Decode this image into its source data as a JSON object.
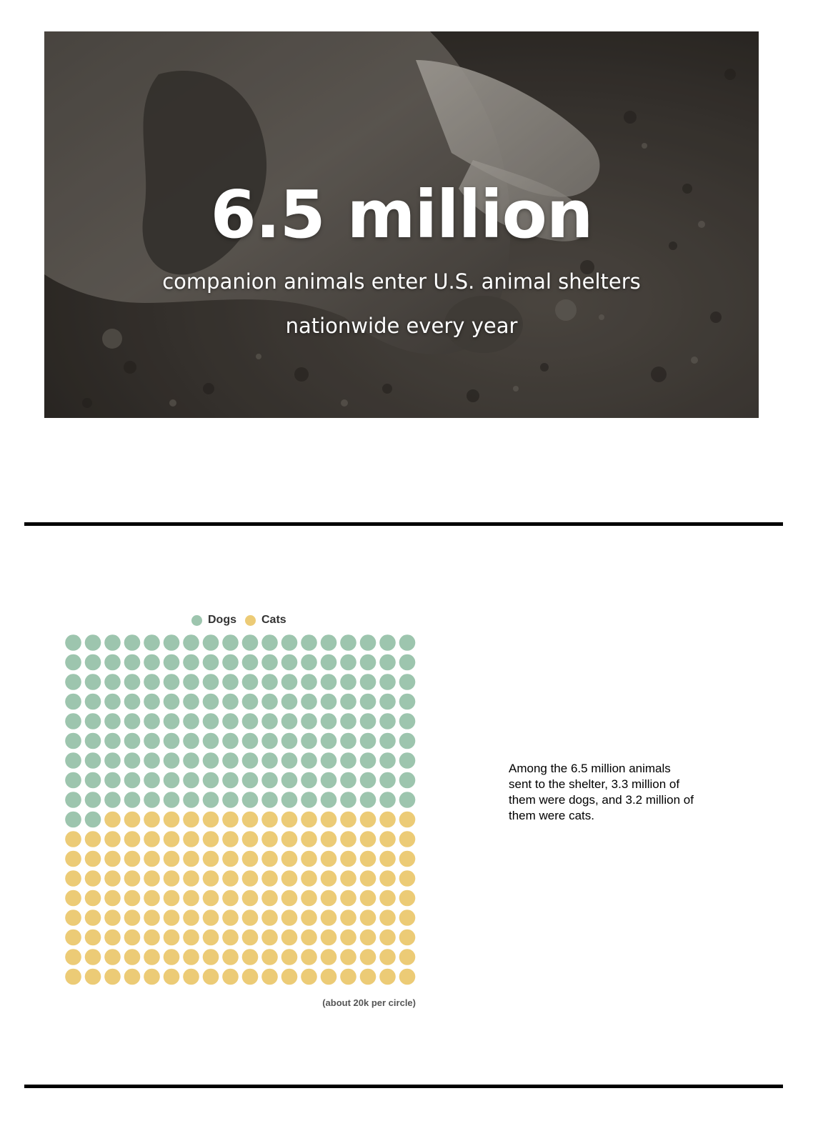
{
  "hero": {
    "headline": "6.5 million",
    "subtitle_line1": "companion animals enter U.S. animal shelters",
    "subtitle_line2": "nationwide every year"
  },
  "chart_data": {
    "type": "waffle",
    "legend": [
      {
        "name": "Dogs",
        "color": "#9dc5ae"
      },
      {
        "name": "Cats",
        "color": "#eccb76"
      }
    ],
    "series": [
      {
        "name": "Dogs",
        "values": [
          164
        ]
      },
      {
        "name": "Cats",
        "values": [
          160
        ]
      }
    ],
    "grid": {
      "rows": 18,
      "columns": 18
    },
    "unit_note": "(about 20k per circle)"
  },
  "caption": {
    "text": "Among the 6.5 million animals sent to the shelter, 3.3 million of them were dogs, and 3.2 million of them were cats."
  }
}
